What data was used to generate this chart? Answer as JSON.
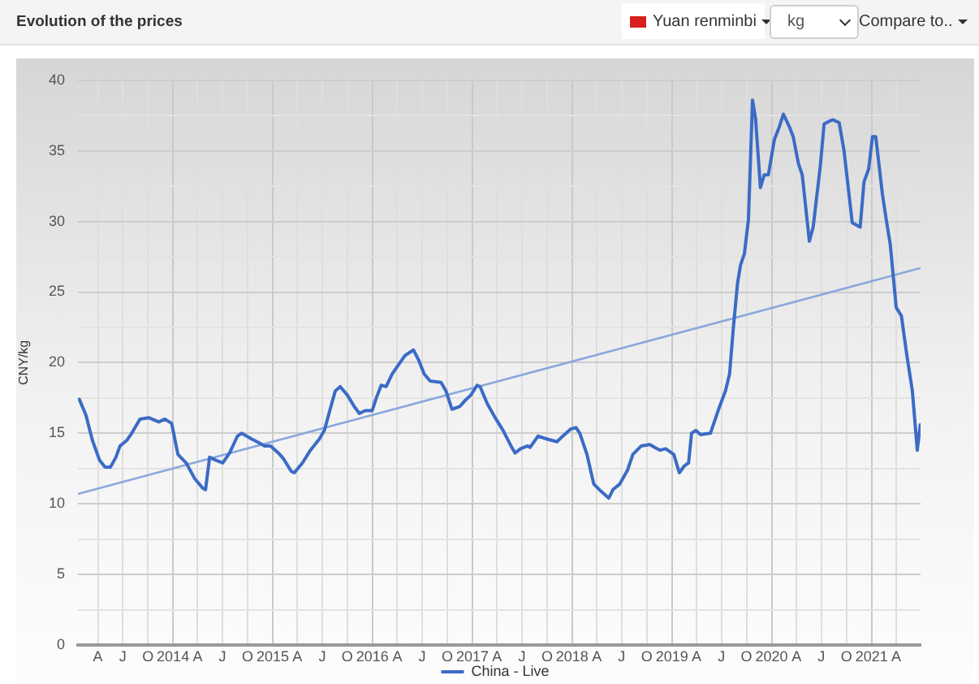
{
  "chart_data": {
    "type": "line",
    "title": "Evolution of the prices",
    "ylabel": "CNY/kg",
    "annotations": [
      "Yuan renminbi",
      "kg",
      "Compare to.."
    ],
    "series": [
      {
        "name": "China - Live",
        "color": "#3b6bc6",
        "x": [
          "2013-01-23",
          "2013-02-16",
          "2013-03-12",
          "2013-04-07",
          "2013-04-27",
          "2013-05-17",
          "2013-06-06",
          "2013-06-21",
          "2013-07-16",
          "2013-08-03",
          "2013-09-02",
          "2013-10-04",
          "2013-11-10",
          "2013-12-02",
          "2013-12-27",
          "2014-01-19",
          "2014-02-18",
          "2014-03-21",
          "2014-04-20",
          "2014-04-30",
          "2014-05-15",
          "2014-06-06",
          "2014-07-02",
          "2014-07-27",
          "2014-08-25",
          "2014-09-09",
          "2014-10-15",
          "2014-11-14",
          "2014-12-02",
          "2014-12-24",
          "2015-01-22",
          "2015-02-09",
          "2015-03-10",
          "2015-03-21",
          "2015-04-20",
          "2015-05-19",
          "2015-06-21",
          "2015-07-09",
          "2015-08-02",
          "2015-08-18",
          "2015-09-05",
          "2015-10-01",
          "2015-10-26",
          "2015-11-14",
          "2015-12-05",
          "2015-12-31",
          "2016-01-15",
          "2016-02-02",
          "2016-02-20",
          "2016-03-13",
          "2016-03-31",
          "2016-04-29",
          "2016-05-30",
          "2016-06-20",
          "2016-07-08",
          "2016-07-30",
          "2016-09-08",
          "2016-09-26",
          "2016-10-18",
          "2016-11-16",
          "2016-12-04",
          "2016-12-26",
          "2017-01-18",
          "2017-01-29",
          "2017-02-24",
          "2017-03-25",
          "2017-04-23",
          "2017-05-22",
          "2017-06-06",
          "2017-06-26",
          "2017-07-22",
          "2017-07-31",
          "2017-08-29",
          "2017-09-29",
          "2017-11-06",
          "2017-11-28",
          "2017-12-27",
          "2018-01-15",
          "2018-01-29",
          "2018-02-24",
          "2018-03-21",
          "2018-04-16",
          "2018-05-15",
          "2018-05-30",
          "2018-06-24",
          "2018-07-23",
          "2018-08-11",
          "2018-09-11",
          "2018-10-12",
          "2018-10-30",
          "2018-11-19",
          "2018-12-09",
          "2019-01-08",
          "2019-01-28",
          "2019-02-16",
          "2019-03-03",
          "2019-03-14",
          "2019-03-29",
          "2019-04-16",
          "2019-05-22",
          "2019-06-21",
          "2019-07-16",
          "2019-07-31",
          "2019-08-14",
          "2019-08-29",
          "2019-09-09",
          "2019-09-23",
          "2019-10-08",
          "2019-10-23",
          "2019-11-03",
          "2019-11-21",
          "2019-12-05",
          "2019-12-20",
          "2020-01-11",
          "2020-01-29",
          "2020-02-13",
          "2020-03-06",
          "2020-03-20",
          "2020-04-08",
          "2020-04-22",
          "2020-05-18",
          "2020-06-01",
          "2020-06-27",
          "2020-07-11",
          "2020-07-30",
          "2020-08-13",
          "2020-09-04",
          "2020-09-22",
          "2020-10-22",
          "2020-11-20",
          "2020-12-04",
          "2020-12-21",
          "2021-01-04",
          "2021-01-16",
          "2021-02-09",
          "2021-02-26",
          "2021-03-10",
          "2021-04-01",
          "2021-04-20",
          "2021-05-10",
          "2021-05-30",
          "2021-06-17",
          "2021-06-28"
        ],
        "values": [
          17.4,
          16.3,
          14.5,
          13.1,
          12.6,
          12.6,
          13.3,
          14.1,
          14.5,
          15.0,
          16.0,
          16.1,
          15.8,
          16.0,
          15.7,
          13.5,
          12.9,
          11.8,
          11.1,
          11.0,
          13.3,
          13.1,
          12.9,
          13.6,
          14.8,
          15.0,
          14.6,
          14.3,
          14.1,
          14.1,
          13.6,
          13.2,
          12.3,
          12.2,
          12.9,
          13.8,
          14.6,
          15.2,
          16.9,
          18.0,
          18.3,
          17.7,
          16.9,
          16.4,
          16.6,
          16.6,
          17.5,
          18.4,
          18.3,
          19.2,
          19.7,
          20.5,
          20.9,
          20.1,
          19.2,
          18.7,
          18.6,
          18.0,
          16.7,
          16.9,
          17.3,
          17.7,
          18.4,
          18.3,
          17.1,
          16.1,
          15.2,
          14.1,
          13.6,
          13.9,
          14.1,
          14.0,
          14.8,
          14.6,
          14.4,
          14.8,
          15.3,
          15.4,
          15.0,
          13.5,
          11.4,
          10.9,
          10.4,
          11.0,
          11.4,
          12.4,
          13.5,
          14.1,
          14.2,
          14.0,
          13.8,
          13.9,
          13.5,
          12.2,
          12.7,
          12.9,
          15.0,
          15.2,
          14.9,
          15.0,
          16.7,
          18.0,
          19.2,
          22.5,
          25.6,
          26.9,
          27.7,
          30.1,
          38.6,
          37.3,
          32.4,
          33.3,
          33.3,
          35.8,
          36.7,
          37.6,
          36.7,
          36.0,
          34.1,
          33.3,
          28.6,
          29.6,
          33.9,
          36.9,
          37.1,
          37.2,
          37.0,
          35.0,
          29.9,
          29.6,
          32.8,
          33.7,
          36.0,
          36.0,
          32.0,
          29.8,
          28.4,
          23.9,
          23.3,
          20.5,
          18.0,
          13.8,
          15.6
        ]
      },
      {
        "type": "line",
        "color": "#8ba7dc",
        "x": [
          "2013-01-18",
          "2021-06-29"
        ],
        "values": [
          10.7,
          26.7
        ]
      }
    ],
    "xlim": [
      "2013-01-18",
      "2021-06-29"
    ],
    "xticks": [
      {
        "value": "2013-04",
        "label": "A"
      },
      {
        "value": "2013-07",
        "label": "J"
      },
      {
        "value": "2013-10",
        "label": "O"
      },
      "2014",
      {
        "value": "2014-04",
        "label": "A"
      },
      {
        "value": "2014-07",
        "label": "J"
      },
      {
        "value": "2014-10",
        "label": "O"
      },
      "2015",
      {
        "value": "2015-04",
        "label": "A"
      },
      {
        "value": "2015-07",
        "label": "J"
      },
      {
        "value": "2015-10",
        "label": "O"
      },
      "2016",
      {
        "value": "2016-04",
        "label": "A"
      },
      {
        "value": "2016-07",
        "label": "J"
      },
      {
        "value": "2016-10",
        "label": "O"
      },
      "2017",
      {
        "value": "2017-04",
        "label": "A"
      },
      {
        "value": "2017-07",
        "label": "J"
      },
      {
        "value": "2017-10",
        "label": "O"
      },
      "2018",
      {
        "value": "2018-04",
        "label": "A"
      },
      {
        "value": "2018-07",
        "label": "J"
      },
      {
        "value": "2018-10",
        "label": "O"
      },
      "2019",
      {
        "value": "2019-04",
        "label": "A"
      },
      {
        "value": "2019-07",
        "label": "J"
      },
      {
        "value": "2019-10",
        "label": "O"
      },
      "2020",
      {
        "value": "2020-04",
        "label": "A"
      },
      {
        "value": "2020-07",
        "label": "J"
      },
      {
        "value": "2020-10",
        "label": "O"
      },
      "2021",
      {
        "value": "2021-04",
        "label": "A"
      }
    ],
    "ylim": [
      0,
      40
    ],
    "yticks": [
      0,
      {
        "value": 2.5,
        "label": null
      },
      5,
      {
        "value": 7.5,
        "label": null
      },
      10,
      {
        "value": 12.5,
        "label": null
      },
      15,
      {
        "value": 17.5,
        "label": null
      },
      20,
      {
        "value": 22.5,
        "label": null
      },
      25,
      {
        "value": 27.5,
        "label": null
      },
      30,
      {
        "value": 32.5,
        "label": null
      },
      35,
      {
        "value": 37.5,
        "label": null
      },
      40
    ],
    "grid": true,
    "legend": "bottom"
  }
}
